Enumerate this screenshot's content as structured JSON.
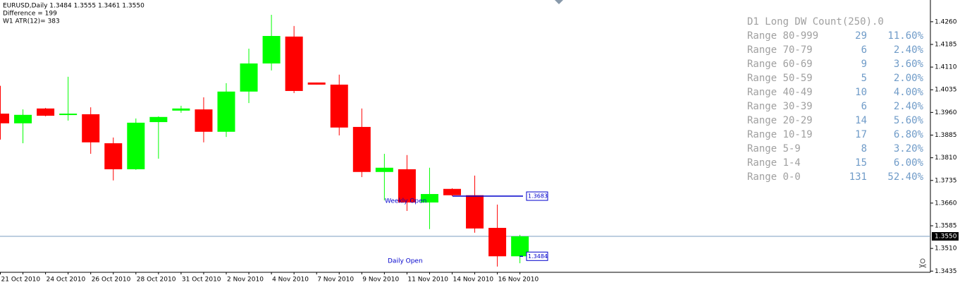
{
  "chart_data": {
    "type": "candlestick",
    "header": [
      "EURUSD,Daily  1.3484 1.3555 1.3461 1.3550",
      "Difference = 199",
      "W1 ATR(12)= 383"
    ],
    "categories": [
      "21 Oct 2010",
      null,
      "24 Oct 2010",
      null,
      "26 Oct 2010",
      null,
      "28 Oct 2010",
      null,
      "31 Oct 2010",
      null,
      "2 Nov 2010",
      null,
      "4 Nov 2010",
      null,
      "7 Nov 2010",
      null,
      "9 Nov 2010",
      null,
      "11 Nov 2010",
      null,
      "14 Nov 2010",
      null,
      "16 Nov 2010",
      null
    ],
    "open": [
      1.3956,
      1.3924,
      1.3973,
      1.3952,
      1.3954,
      1.3858,
      1.3772,
      1.3928,
      1.3966,
      1.397,
      1.3896,
      1.4029,
      1.4122,
      1.4211,
      1.4059,
      1.4052,
      1.3912,
      1.3763,
      1.3772,
      1.3662,
      1.3707,
      1.3686,
      1.3578,
      1.3484
    ],
    "high": [
      1.4048,
      1.397,
      1.3975,
      1.4078,
      1.3977,
      1.3877,
      1.394,
      1.3947,
      1.3982,
      1.401,
      1.4057,
      1.4171,
      1.4283,
      1.4246,
      1.4059,
      1.4085,
      1.3973,
      1.3823,
      1.3819,
      1.3777,
      1.3709,
      1.3751,
      1.3655,
      1.3555
    ],
    "low": [
      1.387,
      1.3858,
      1.3947,
      1.3933,
      1.3823,
      1.3735,
      1.377,
      1.3807,
      1.3959,
      1.3861,
      1.3879,
      1.3991,
      1.4099,
      1.4024,
      1.4052,
      1.3884,
      1.3746,
      1.3669,
      1.3634,
      1.3574,
      1.3683,
      1.3562,
      1.345,
      1.3461
    ],
    "close": [
      1.3924,
      1.3952,
      1.3949,
      1.3956,
      1.3861,
      1.3772,
      1.3926,
      1.3945,
      1.3973,
      1.3896,
      1.4029,
      1.4122,
      1.4213,
      1.4031,
      1.4052,
      1.391,
      1.3763,
      1.3777,
      1.3662,
      1.369,
      1.3686,
      1.3576,
      1.3484,
      1.355
    ],
    "up_color": "#00ff00",
    "down_color": "#ff0000",
    "ylim": [
      1.3431,
      1.4332
    ],
    "yticks": [
      {
        "value": 1.426,
        "label": "1.4260"
      },
      {
        "value": 1.4185,
        "label": "1.4185"
      },
      {
        "value": 1.411,
        "label": "1.4110"
      },
      {
        "value": 1.4035,
        "label": "1.4035"
      },
      {
        "value": 1.396,
        "label": "1.3960"
      },
      {
        "value": 1.3885,
        "label": "1.3885"
      },
      {
        "value": 1.381,
        "label": "1.3810"
      },
      {
        "value": 1.3735,
        "label": "1.3735"
      },
      {
        "value": 1.366,
        "label": "1.3660"
      },
      {
        "value": 1.3585,
        "label": "1.3585"
      },
      {
        "value": 1.351,
        "label": "1.3510"
      },
      {
        "value": 1.3435,
        "label": "1.3435"
      }
    ],
    "current_price": {
      "value": 1.355,
      "label": "1.3550",
      "color": "#7b9cc0"
    },
    "levels": [
      {
        "name": "Weekly Open",
        "value": 1.3683,
        "color": "#0000cc"
      },
      {
        "name": "Daily Open",
        "value": 1.3484,
        "color": "#0000cc"
      }
    ],
    "stats": {
      "title": "D1 Long DW Count(250).0",
      "rows": [
        [
          "Range 80-999",
          29,
          "11.60%"
        ],
        [
          "Range 70-79",
          6,
          "2.40%"
        ],
        [
          "Range 60-69",
          9,
          "3.60%"
        ],
        [
          "Range 50-59",
          5,
          "2.00%"
        ],
        [
          "Range 40-49",
          10,
          "4.00%"
        ],
        [
          "Range 30-39",
          6,
          "2.40%"
        ],
        [
          "Range 20-29",
          14,
          "5.60%"
        ],
        [
          "Range 10-19",
          17,
          "6.80%"
        ],
        [
          "Range 5-9",
          8,
          "3.20%"
        ],
        [
          "Range 1-4",
          15,
          "6.00%"
        ],
        [
          "Range 0-0",
          131,
          "52.40%"
        ]
      ]
    }
  }
}
